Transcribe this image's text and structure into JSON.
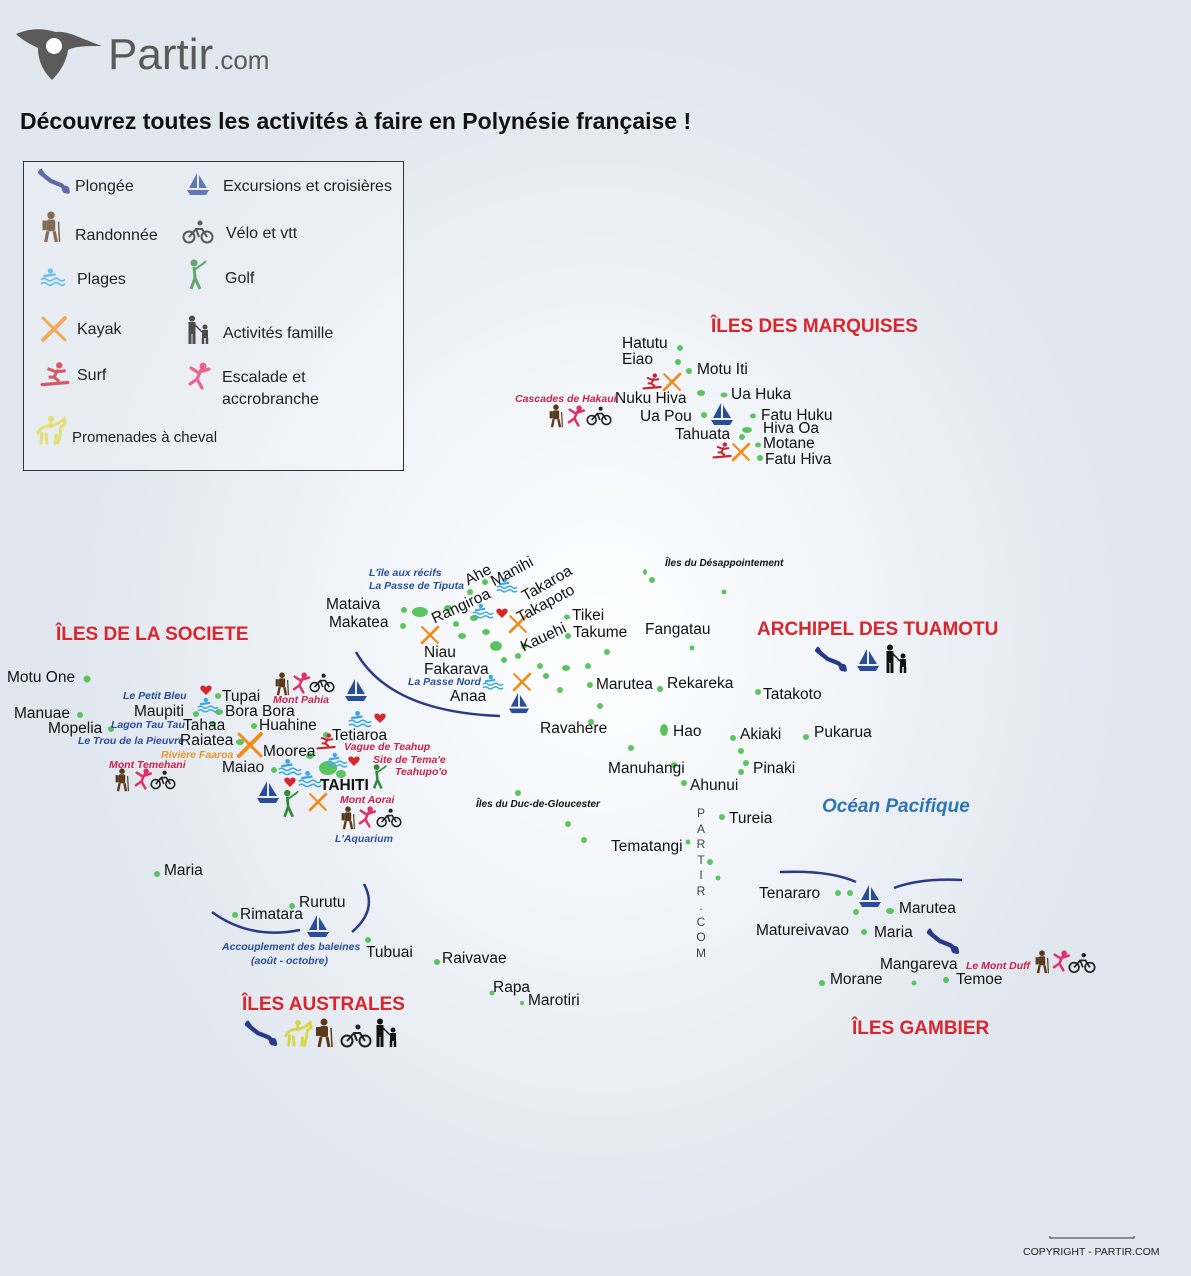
{
  "brand": {
    "name": "Partir",
    "domain": ".com"
  },
  "title": "Découvrez toutes les activités à faire en Polynésie française !",
  "legend": [
    {
      "label": "Plongée",
      "icon": "diver-icon"
    },
    {
      "label": "Excursions et croisières",
      "icon": "sailboat-icon"
    },
    {
      "label": "Randonnée",
      "icon": "hiker-icon"
    },
    {
      "label": "Vélo et vtt",
      "icon": "cyclist-icon"
    },
    {
      "label": "Plages",
      "icon": "beach-icon"
    },
    {
      "label": "Golf",
      "icon": "golfer-icon"
    },
    {
      "label": "Kayak",
      "icon": "kayak-icon"
    },
    {
      "label": "Activités famille",
      "icon": "family-icon"
    },
    {
      "label": "Surf",
      "icon": "surfer-icon"
    },
    {
      "label": "Escalade et",
      "label2": "accrobranche",
      "icon": "climber-icon"
    },
    {
      "label": "Promenades à cheval",
      "icon": "horse-icon"
    }
  ],
  "archipelagos": {
    "marquises": "ÎLES DES MARQUISES",
    "societe": "ÎLES DE LA SOCIETE",
    "tuamotu": "ARCHIPEL DES TUAMOTU",
    "australes": "ÎLES AUSTRALES",
    "gambier": "ÎLES GAMBIER"
  },
  "islands": {
    "marquises": [
      "Hatutu",
      "Eiao",
      "Motu Iti",
      "Nuku Hiva",
      "Ua Huka",
      "Ua Pou",
      "Fatu Huku",
      "Hiva Oa",
      "Tahuata",
      "Motane",
      "Fatu Hiva"
    ],
    "societe": [
      "Motu One",
      "Manuae",
      "Mopelia",
      "Tupai",
      "Maupiti",
      "Bora Bora",
      "Tahaa",
      "Huahine",
      "Raiatea",
      "Tetiaroa",
      "Moorea",
      "Maiao",
      "TAHITI"
    ],
    "tuamotu": [
      "Ahe",
      "Manihi",
      "Rangiroa",
      "Takaroa",
      "Takapoto",
      "Mataiva",
      "Makatea",
      "Tikei",
      "Kauehi",
      "Takume",
      "Fangatau",
      "Niau",
      "Fakarava",
      "Anaa",
      "Marutea",
      "Rekareka",
      "Tatakoto",
      "Ravahere",
      "Hao",
      "Akiaki",
      "Pukarua",
      "Manuhangi",
      "Pinaki",
      "Ahunui",
      "Tureia",
      "Tematangi"
    ],
    "australes": [
      "Maria",
      "Rurutu",
      "Rimatara",
      "Tubuai",
      "Raivavae",
      "Rapa",
      "Marotiri"
    ],
    "gambier": [
      "Tenararo",
      "Marutea",
      "Matureivavao",
      "Maria",
      "Mangareva",
      "Morane",
      "Temoe"
    ]
  },
  "sites": {
    "hakaui": "Cascades de Hakaui",
    "desappointement": "Îles du Désappointement",
    "recifs": "L'île aux récifs",
    "tiputa": "La Passe de Tiputa",
    "passe_nord": "La Passe Nord",
    "petit_bleu": "Le Petit Bleu",
    "lagon": "Lagon Tau Tau",
    "pieuvre": "Le Trou de la Pieuvre",
    "faaroa": "Rivière Faaroa",
    "temehani": "Mont Temehani",
    "pahia": "Mont Pahia",
    "teahup": "Vague de Teahup",
    "temae": "Site de Tema'e",
    "teahupoo": "Teahupo'o",
    "aorai": "Mont Aorai",
    "aquarium": "L'Aquarium",
    "gloucester": "Îles du Duc-de-Gloucester",
    "baleines": "Accouplement des baleines",
    "baleines2": "(août - octobre)",
    "mont_duff": "Le Mont Duff"
  },
  "ocean": "Océan Pacifique",
  "watermark": "PARTIR.COM",
  "copyright": "COPYRIGHT - PARTIR.COM",
  "colors": {
    "island": "#5cc45f",
    "archipelago": "#d8262d",
    "site_blue": "#2a4d9a",
    "site_red": "#c8234a",
    "ocean": "#2f75b5"
  }
}
